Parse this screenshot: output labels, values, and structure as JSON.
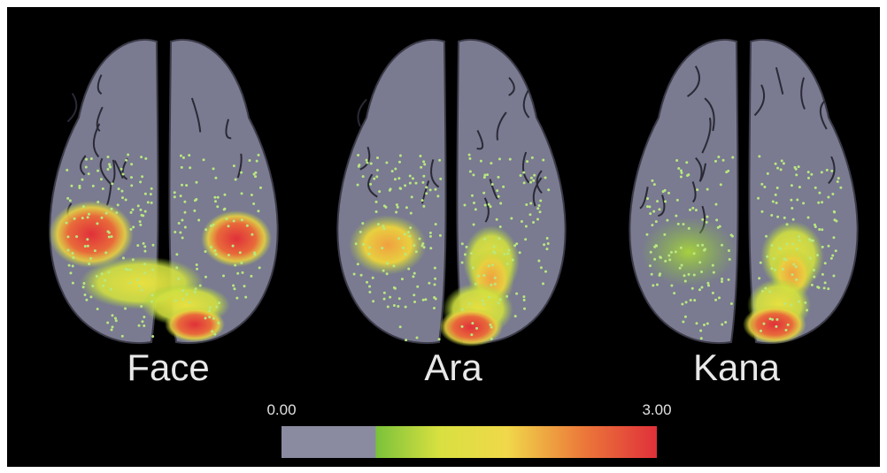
{
  "panels": [
    {
      "label": "Face"
    },
    {
      "label": "Ara"
    },
    {
      "label": "Kana"
    }
  ],
  "colorbar": {
    "ticks": [
      {
        "value": 0,
        "label": "0.00"
      },
      {
        "value": 3,
        "label": "3.00"
      }
    ]
  }
}
